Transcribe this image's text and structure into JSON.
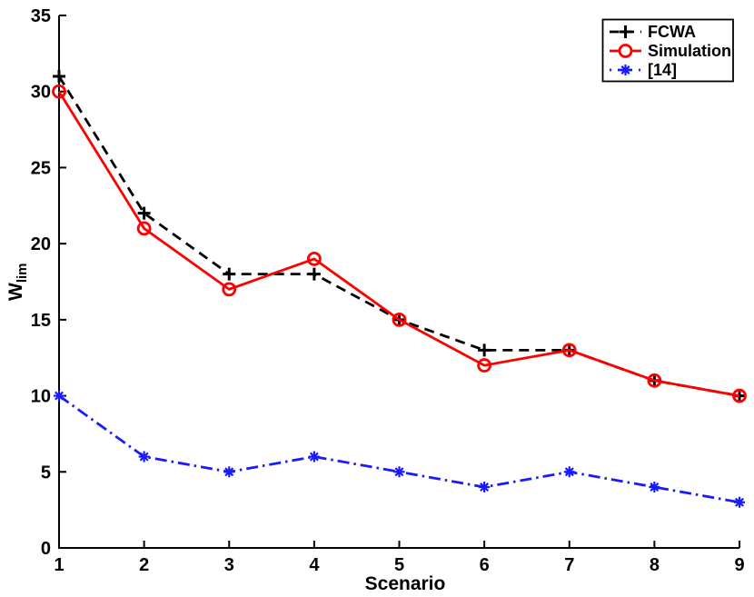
{
  "figure": {
    "background": "#ffffff",
    "axis_color": "#000000"
  },
  "chart_data": {
    "type": "line",
    "title": "",
    "xlabel": "Scenario",
    "ylabel": "W_lim",
    "ylabel_main": "W",
    "ylabel_subscript": "lim",
    "xlim": [
      1,
      9
    ],
    "ylim": [
      0,
      35
    ],
    "x_ticks": [
      1,
      2,
      3,
      4,
      5,
      6,
      7,
      8,
      9
    ],
    "y_ticks": [
      0,
      5,
      10,
      15,
      20,
      25,
      30,
      35
    ],
    "grid": false,
    "legend_position": "top-right",
    "x": [
      1,
      2,
      3,
      4,
      5,
      6,
      7,
      8,
      9
    ],
    "series": [
      {
        "name": "FCWA",
        "values": [
          31,
          22,
          18,
          18,
          15,
          13,
          13,
          11,
          10
        ],
        "color": "#000000",
        "line_style": "dashed",
        "marker": "plus"
      },
      {
        "name": "Simulation",
        "values": [
          30,
          21,
          17,
          19,
          15,
          12,
          13,
          11,
          10
        ],
        "color": "#ff0000",
        "line_style": "solid",
        "marker": "circle"
      },
      {
        "name": "[14]",
        "values": [
          10,
          6,
          5,
          6,
          5,
          4,
          5,
          4,
          3
        ],
        "color": "#1a1aff",
        "line_style": "dash-dot",
        "marker": "asterisk"
      }
    ]
  }
}
